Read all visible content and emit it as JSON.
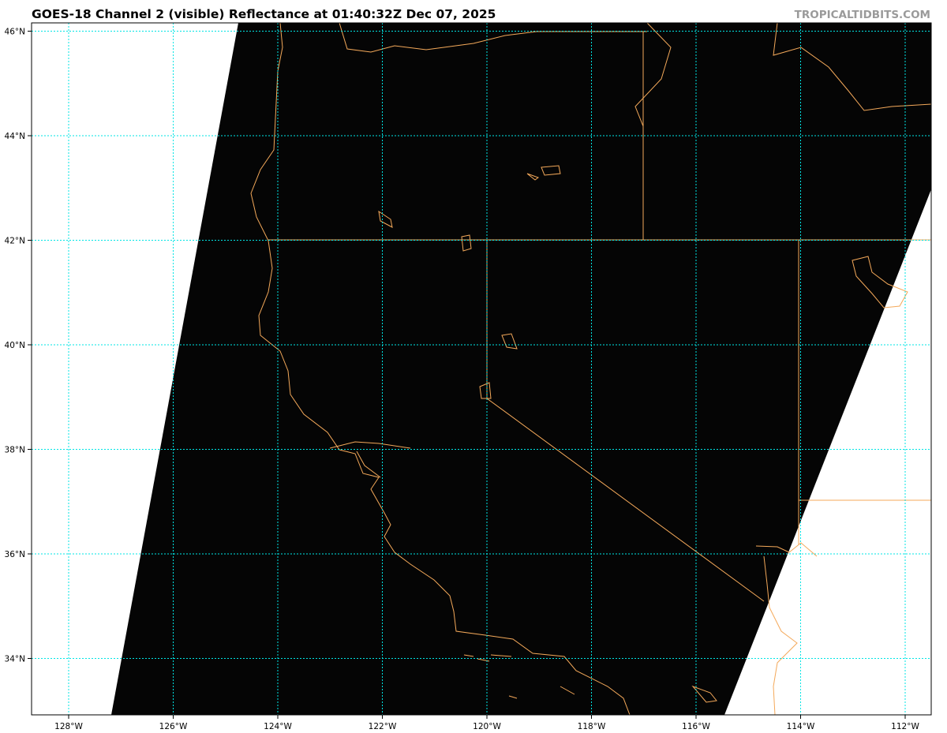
{
  "title": "GOES-18 Channel 2 (visible) Reflectance at 01:40:32Z Dec 07, 2025",
  "watermark": "TROPICALTIDBITS.COM",
  "map": {
    "extent": {
      "lon": [
        -128.7,
        -111.5
      ],
      "lat": [
        32.9,
        46.2
      ]
    },
    "longitudes": [
      -128,
      -126,
      -124,
      -122,
      -120,
      -118,
      -116,
      -114,
      -112
    ],
    "latitudes": [
      46,
      44,
      42,
      40,
      38,
      36,
      34
    ],
    "lon_labels": [
      "128°W",
      "126°W",
      "124°W",
      "122°W",
      "120°W",
      "118°W",
      "116°W",
      "114°W",
      "112°W"
    ],
    "lat_labels": [
      "46°N",
      "44°N",
      "42°N",
      "40°N",
      "38°N",
      "36°N",
      "34°N"
    ],
    "colors": {
      "imagery": "#050505",
      "no_data": "#ffffff",
      "gridlines": "#00e5e5",
      "coastlines": "#f4a95a",
      "borders": "#f4a95a"
    }
  }
}
